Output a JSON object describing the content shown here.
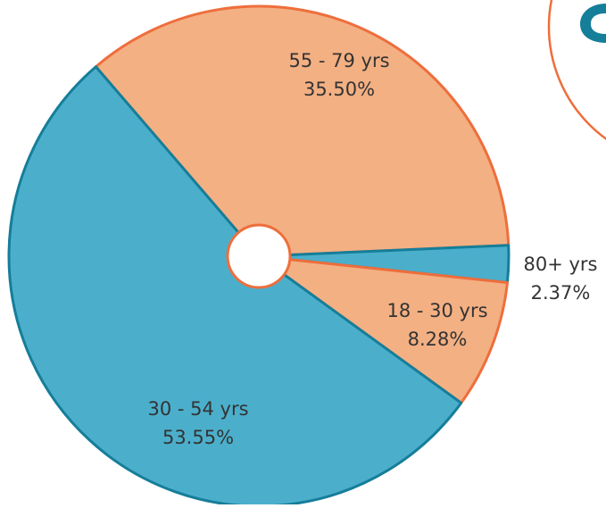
{
  "colors": {
    "blue_fill": "#4bafcc",
    "blue_stroke": "#157e99",
    "orange_fill": "#f3b083",
    "orange_stroke": "#ee6e3c",
    "badge_text": "#157e99",
    "background": "#ffffff"
  },
  "chart_data": {
    "type": "pie",
    "title": "",
    "categories": [
      "55 - 79 yrs",
      "80+ yrs",
      "18 - 30 yrs",
      "30 - 54 yrs"
    ],
    "values": [
      35.5,
      2.37,
      8.28,
      53.55
    ],
    "value_labels": [
      "35.50%",
      "2.37%",
      "8.28%",
      "53.55%"
    ],
    "slice_colors": [
      "orange",
      "blue",
      "orange",
      "blue"
    ],
    "donut_hole": true,
    "legend": "none"
  }
}
